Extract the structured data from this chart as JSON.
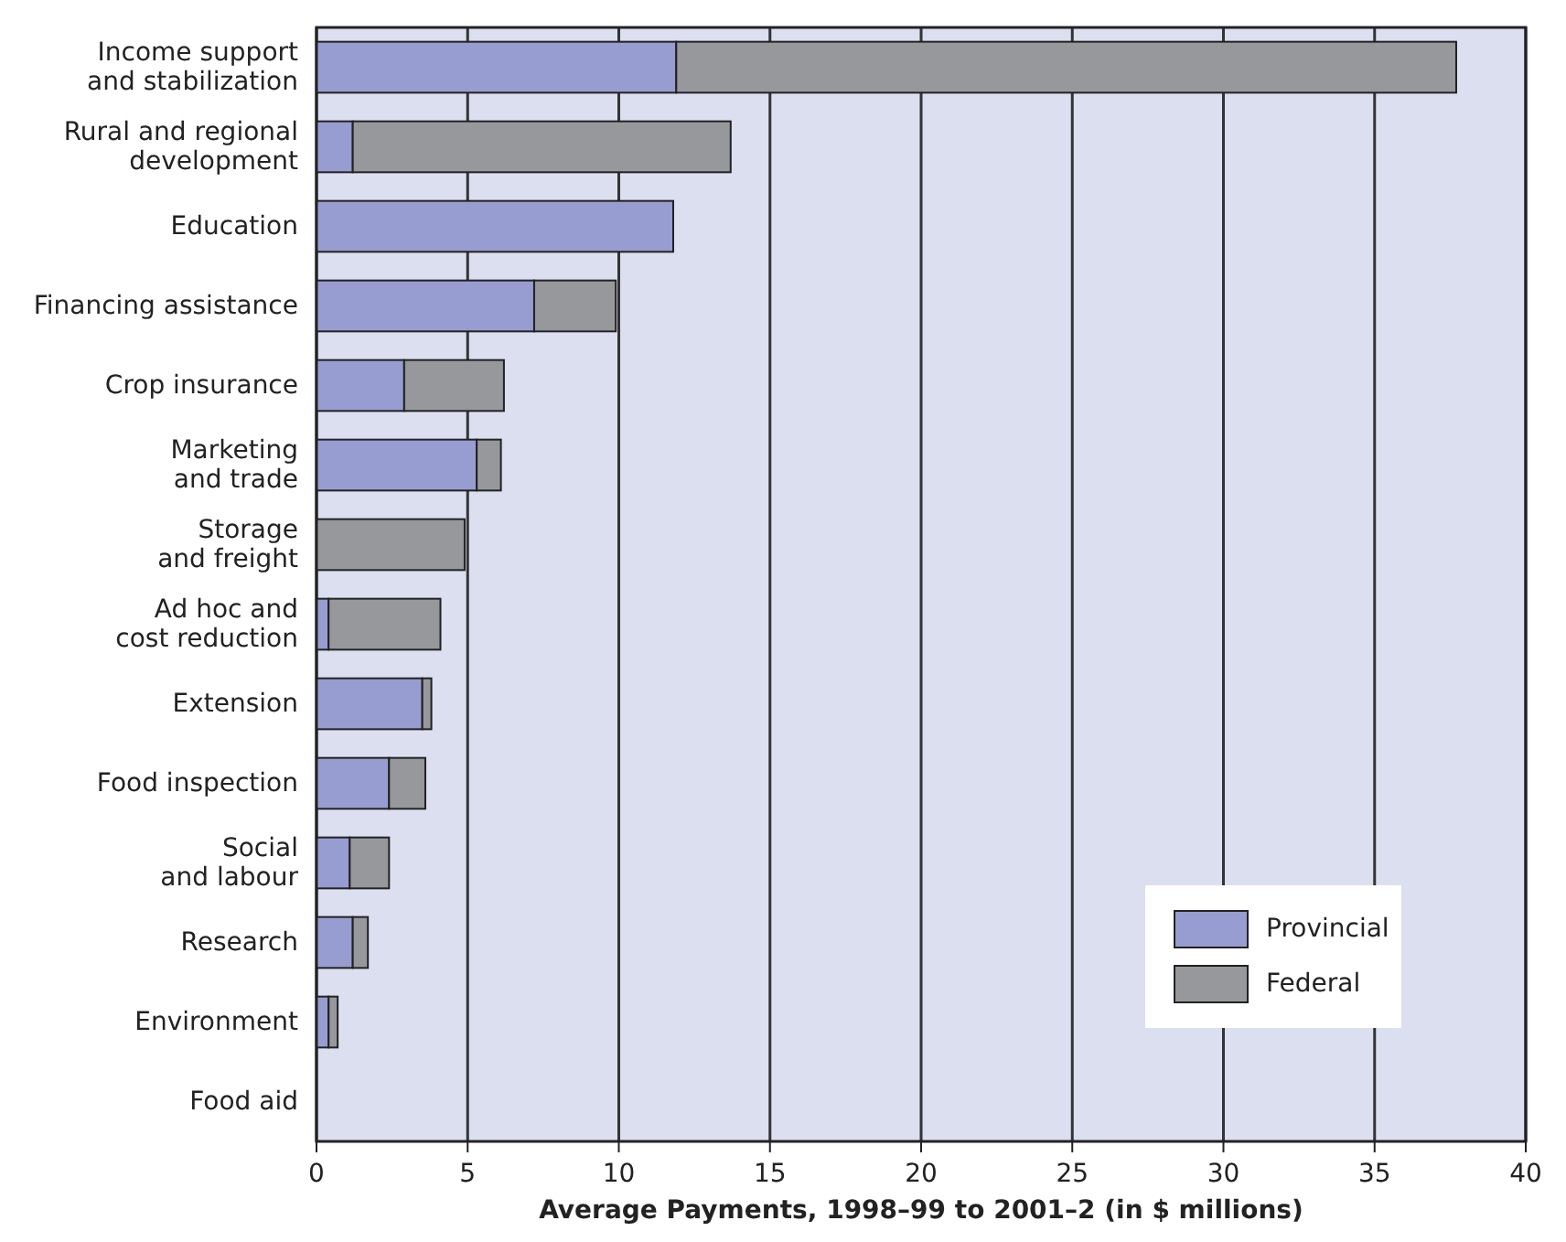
{
  "chart_data": {
    "type": "bar",
    "orientation": "horizontal",
    "stacked": true,
    "xlabel": "Average Payments, 1998–99 to 2001–2 (in $ millions)",
    "categories": [
      "Income support\nand stabilization",
      "Rural and regional\ndevelopment",
      "Education",
      "Financing assistance",
      "Crop insurance",
      "Marketing\nand trade",
      "Storage\nand freight",
      "Ad hoc and\ncost reduction",
      "Extension",
      "Food inspection",
      "Social\nand labour",
      "Research",
      "Environment",
      "Food aid"
    ],
    "series": [
      {
        "name": "Provincial",
        "color": "#979dd0",
        "values": [
          11.9,
          1.2,
          11.8,
          7.2,
          2.9,
          5.3,
          null,
          0.4,
          3.5,
          2.4,
          1.1,
          1.2,
          0.4,
          0
        ]
      },
      {
        "name": "Federal",
        "color": "#97989b",
        "values": [
          25.8,
          12.5,
          0,
          2.7,
          3.3,
          0.8,
          4.9,
          3.7,
          0.3,
          1.2,
          1.3,
          0.5,
          0.3,
          0
        ]
      }
    ],
    "xlim": [
      0,
      40
    ],
    "xticks": [
      0,
      5,
      10,
      15,
      20,
      25,
      30,
      35,
      40
    ],
    "grid": "x",
    "legend": "bottom right"
  }
}
